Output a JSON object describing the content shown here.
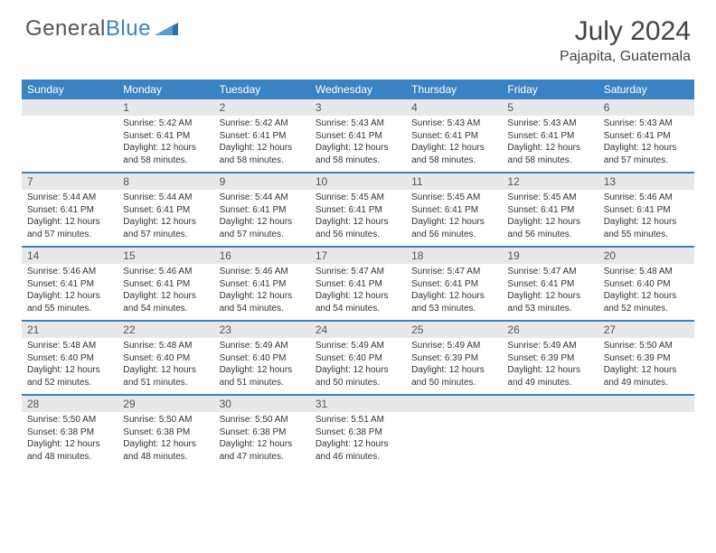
{
  "brand": {
    "text1": "General",
    "text2": "Blue"
  },
  "title": "July 2024",
  "location": "Pajapita, Guatemala",
  "colors": {
    "header_bg": "#3b82c4",
    "header_fg": "#ffffff",
    "daynum_bg": "#e8e8e8",
    "text": "#333333",
    "page_bg": "#ffffff"
  },
  "dow": [
    "Sunday",
    "Monday",
    "Tuesday",
    "Wednesday",
    "Thursday",
    "Friday",
    "Saturday"
  ],
  "weeks": [
    [
      null,
      {
        "n": "1",
        "sr": "Sunrise: 5:42 AM",
        "ss": "Sunset: 6:41 PM",
        "d1": "Daylight: 12 hours",
        "d2": "and 58 minutes."
      },
      {
        "n": "2",
        "sr": "Sunrise: 5:42 AM",
        "ss": "Sunset: 6:41 PM",
        "d1": "Daylight: 12 hours",
        "d2": "and 58 minutes."
      },
      {
        "n": "3",
        "sr": "Sunrise: 5:43 AM",
        "ss": "Sunset: 6:41 PM",
        "d1": "Daylight: 12 hours",
        "d2": "and 58 minutes."
      },
      {
        "n": "4",
        "sr": "Sunrise: 5:43 AM",
        "ss": "Sunset: 6:41 PM",
        "d1": "Daylight: 12 hours",
        "d2": "and 58 minutes."
      },
      {
        "n": "5",
        "sr": "Sunrise: 5:43 AM",
        "ss": "Sunset: 6:41 PM",
        "d1": "Daylight: 12 hours",
        "d2": "and 58 minutes."
      },
      {
        "n": "6",
        "sr": "Sunrise: 5:43 AM",
        "ss": "Sunset: 6:41 PM",
        "d1": "Daylight: 12 hours",
        "d2": "and 57 minutes."
      }
    ],
    [
      {
        "n": "7",
        "sr": "Sunrise: 5:44 AM",
        "ss": "Sunset: 6:41 PM",
        "d1": "Daylight: 12 hours",
        "d2": "and 57 minutes."
      },
      {
        "n": "8",
        "sr": "Sunrise: 5:44 AM",
        "ss": "Sunset: 6:41 PM",
        "d1": "Daylight: 12 hours",
        "d2": "and 57 minutes."
      },
      {
        "n": "9",
        "sr": "Sunrise: 5:44 AM",
        "ss": "Sunset: 6:41 PM",
        "d1": "Daylight: 12 hours",
        "d2": "and 57 minutes."
      },
      {
        "n": "10",
        "sr": "Sunrise: 5:45 AM",
        "ss": "Sunset: 6:41 PM",
        "d1": "Daylight: 12 hours",
        "d2": "and 56 minutes."
      },
      {
        "n": "11",
        "sr": "Sunrise: 5:45 AM",
        "ss": "Sunset: 6:41 PM",
        "d1": "Daylight: 12 hours",
        "d2": "and 56 minutes."
      },
      {
        "n": "12",
        "sr": "Sunrise: 5:45 AM",
        "ss": "Sunset: 6:41 PM",
        "d1": "Daylight: 12 hours",
        "d2": "and 56 minutes."
      },
      {
        "n": "13",
        "sr": "Sunrise: 5:46 AM",
        "ss": "Sunset: 6:41 PM",
        "d1": "Daylight: 12 hours",
        "d2": "and 55 minutes."
      }
    ],
    [
      {
        "n": "14",
        "sr": "Sunrise: 5:46 AM",
        "ss": "Sunset: 6:41 PM",
        "d1": "Daylight: 12 hours",
        "d2": "and 55 minutes."
      },
      {
        "n": "15",
        "sr": "Sunrise: 5:46 AM",
        "ss": "Sunset: 6:41 PM",
        "d1": "Daylight: 12 hours",
        "d2": "and 54 minutes."
      },
      {
        "n": "16",
        "sr": "Sunrise: 5:46 AM",
        "ss": "Sunset: 6:41 PM",
        "d1": "Daylight: 12 hours",
        "d2": "and 54 minutes."
      },
      {
        "n": "17",
        "sr": "Sunrise: 5:47 AM",
        "ss": "Sunset: 6:41 PM",
        "d1": "Daylight: 12 hours",
        "d2": "and 54 minutes."
      },
      {
        "n": "18",
        "sr": "Sunrise: 5:47 AM",
        "ss": "Sunset: 6:41 PM",
        "d1": "Daylight: 12 hours",
        "d2": "and 53 minutes."
      },
      {
        "n": "19",
        "sr": "Sunrise: 5:47 AM",
        "ss": "Sunset: 6:41 PM",
        "d1": "Daylight: 12 hours",
        "d2": "and 53 minutes."
      },
      {
        "n": "20",
        "sr": "Sunrise: 5:48 AM",
        "ss": "Sunset: 6:40 PM",
        "d1": "Daylight: 12 hours",
        "d2": "and 52 minutes."
      }
    ],
    [
      {
        "n": "21",
        "sr": "Sunrise: 5:48 AM",
        "ss": "Sunset: 6:40 PM",
        "d1": "Daylight: 12 hours",
        "d2": "and 52 minutes."
      },
      {
        "n": "22",
        "sr": "Sunrise: 5:48 AM",
        "ss": "Sunset: 6:40 PM",
        "d1": "Daylight: 12 hours",
        "d2": "and 51 minutes."
      },
      {
        "n": "23",
        "sr": "Sunrise: 5:49 AM",
        "ss": "Sunset: 6:40 PM",
        "d1": "Daylight: 12 hours",
        "d2": "and 51 minutes."
      },
      {
        "n": "24",
        "sr": "Sunrise: 5:49 AM",
        "ss": "Sunset: 6:40 PM",
        "d1": "Daylight: 12 hours",
        "d2": "and 50 minutes."
      },
      {
        "n": "25",
        "sr": "Sunrise: 5:49 AM",
        "ss": "Sunset: 6:39 PM",
        "d1": "Daylight: 12 hours",
        "d2": "and 50 minutes."
      },
      {
        "n": "26",
        "sr": "Sunrise: 5:49 AM",
        "ss": "Sunset: 6:39 PM",
        "d1": "Daylight: 12 hours",
        "d2": "and 49 minutes."
      },
      {
        "n": "27",
        "sr": "Sunrise: 5:50 AM",
        "ss": "Sunset: 6:39 PM",
        "d1": "Daylight: 12 hours",
        "d2": "and 49 minutes."
      }
    ],
    [
      {
        "n": "28",
        "sr": "Sunrise: 5:50 AM",
        "ss": "Sunset: 6:38 PM",
        "d1": "Daylight: 12 hours",
        "d2": "and 48 minutes."
      },
      {
        "n": "29",
        "sr": "Sunrise: 5:50 AM",
        "ss": "Sunset: 6:38 PM",
        "d1": "Daylight: 12 hours",
        "d2": "and 48 minutes."
      },
      {
        "n": "30",
        "sr": "Sunrise: 5:50 AM",
        "ss": "Sunset: 6:38 PM",
        "d1": "Daylight: 12 hours",
        "d2": "and 47 minutes."
      },
      {
        "n": "31",
        "sr": "Sunrise: 5:51 AM",
        "ss": "Sunset: 6:38 PM",
        "d1": "Daylight: 12 hours",
        "d2": "and 46 minutes."
      },
      null,
      null,
      null
    ]
  ]
}
